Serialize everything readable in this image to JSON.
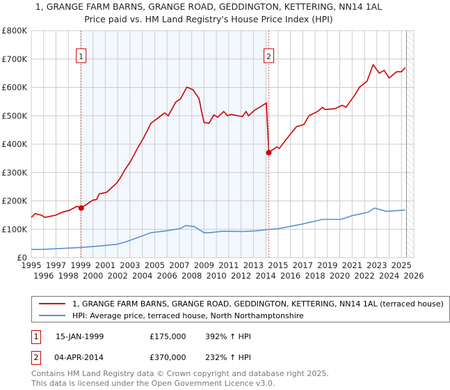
{
  "chart_data": {
    "type": "line",
    "title": "1, GRANGE FARM BARNS, GRANGE ROAD, GEDDINGTON, KETTERING, NN14 1AL",
    "subtitle": "Price paid vs. HM Land Registry's House Price Index (HPI)",
    "xlim": [
      1995,
      2026
    ],
    "ylim": [
      0,
      800000
    ],
    "x_ticks": [
      "1995",
      "1996",
      "1997",
      "1998",
      "1999",
      "2000",
      "2001",
      "2002",
      "2003",
      "2004",
      "2005",
      "2006",
      "2007",
      "2008",
      "2009",
      "2010",
      "2011",
      "2012",
      "2013",
      "2014",
      "2015",
      "2016",
      "2017",
      "2018",
      "2019",
      "2020",
      "2021",
      "2022",
      "2023",
      "2024",
      "2025",
      "2026"
    ],
    "y_ticks": [
      {
        "v": 0,
        "label": "£0"
      },
      {
        "v": 100000,
        "label": "£100K"
      },
      {
        "v": 200000,
        "label": "£200K"
      },
      {
        "v": 300000,
        "label": "£300K"
      },
      {
        "v": 400000,
        "label": "£400K"
      },
      {
        "v": 500000,
        "label": "£500K"
      },
      {
        "v": 600000,
        "label": "£600K"
      },
      {
        "v": 700000,
        "label": "£700K"
      },
      {
        "v": 800000,
        "label": "£800K"
      }
    ],
    "grid": true,
    "series": [
      {
        "name": "1, GRANGE FARM BARNS, GRANGE ROAD, GEDDINGTON, KETTERING, NN14 1AL (terraced house)",
        "color": "#cc0000",
        "points": [
          [
            1995,
            142
          ],
          [
            1995.3,
            155
          ],
          [
            1995.8,
            150
          ],
          [
            1996.1,
            142
          ],
          [
            1997,
            150
          ],
          [
            1997.5,
            160
          ],
          [
            1998.1,
            167
          ],
          [
            1998.7,
            181
          ],
          [
            1999.04,
            175
          ],
          [
            2000,
            203
          ],
          [
            2000.3,
            205
          ],
          [
            2000.5,
            225
          ],
          [
            2001.1,
            230
          ],
          [
            2001.9,
            262
          ],
          [
            2002.2,
            280
          ],
          [
            2002.6,
            311
          ],
          [
            2003,
            336
          ],
          [
            2003.6,
            385
          ],
          [
            2004.1,
            422
          ],
          [
            2004.7,
            474
          ],
          [
            2005.2,
            490
          ],
          [
            2005.8,
            510
          ],
          [
            2006.1,
            500
          ],
          [
            2006.7,
            548
          ],
          [
            2007.1,
            560
          ],
          [
            2007.6,
            601
          ],
          [
            2008.1,
            592
          ],
          [
            2008.6,
            560
          ],
          [
            2008.8,
            515
          ],
          [
            2009,
            476
          ],
          [
            2009.4,
            474
          ],
          [
            2009.8,
            503
          ],
          [
            2010.1,
            495
          ],
          [
            2010.6,
            515
          ],
          [
            2010.9,
            500
          ],
          [
            2011.2,
            505
          ],
          [
            2012.1,
            497
          ],
          [
            2012.4,
            515
          ],
          [
            2012.6,
            500
          ],
          [
            2013.1,
            520
          ],
          [
            2013.5,
            530
          ],
          [
            2014.05,
            545
          ],
          [
            2014.25,
            370
          ],
          [
            2014.55,
            380
          ],
          [
            2014.9,
            390
          ],
          [
            2015.1,
            385
          ],
          [
            2015.9,
            430
          ],
          [
            2016.5,
            462
          ],
          [
            2016.8,
            465
          ],
          [
            2017.1,
            470
          ],
          [
            2017.5,
            500
          ],
          [
            2018.2,
            515
          ],
          [
            2018.6,
            530
          ],
          [
            2018.8,
            522
          ],
          [
            2019.6,
            525
          ],
          [
            2020.2,
            537
          ],
          [
            2020.5,
            530
          ],
          [
            2020.8,
            548
          ],
          [
            2021.2,
            572
          ],
          [
            2021.6,
            601
          ],
          [
            2022.2,
            621
          ],
          [
            2022.7,
            680
          ],
          [
            2023.2,
            650
          ],
          [
            2023.6,
            660
          ],
          [
            2024,
            633
          ],
          [
            2024.6,
            655
          ],
          [
            2025,
            655
          ],
          [
            2025.3,
            670
          ]
        ]
      },
      {
        "name": "HPI: Average price, terraced house, North Northamptonshire",
        "color": "#5b8fd4",
        "points": [
          [
            1995,
            29
          ],
          [
            1995.8,
            29
          ],
          [
            1998.1,
            34
          ],
          [
            1999,
            36
          ],
          [
            2000.5,
            41
          ],
          [
            2001.9,
            47
          ],
          [
            2002.6,
            55
          ],
          [
            2003.7,
            72
          ],
          [
            2004.7,
            88
          ],
          [
            2006,
            95
          ],
          [
            2007.1,
            103
          ],
          [
            2007.5,
            113
          ],
          [
            2008.2,
            110
          ],
          [
            2009,
            88
          ],
          [
            2009.4,
            88
          ],
          [
            2010.5,
            93
          ],
          [
            2012.2,
            92
          ],
          [
            2013.3,
            95
          ],
          [
            2014.3,
            100
          ],
          [
            2015,
            102
          ],
          [
            2016.9,
            118
          ],
          [
            2018.6,
            135
          ],
          [
            2020.1,
            135
          ],
          [
            2021,
            148
          ],
          [
            2022.3,
            160
          ],
          [
            2022.8,
            175
          ],
          [
            2023.8,
            163
          ],
          [
            2025.3,
            168
          ]
        ]
      }
    ],
    "value_unit": "thousands GBP",
    "sales": [
      {
        "n": "1",
        "date": "15-JAN-1999",
        "x": 1999.04,
        "price": "£175,000",
        "value": 175,
        "hpi": "392% ↑ HPI"
      },
      {
        "n": "2",
        "date": "04-APR-2014",
        "x": 2014.25,
        "price": "£370,000",
        "value": 370,
        "hpi": "232% ↑ HPI"
      }
    ],
    "shaded_range": [
      1999.04,
      2014.25
    ],
    "forecast_from": 2025.4
  },
  "footer": {
    "line1": "Contains HM Land Registry data © Crown copyright and database right 2025.",
    "line2": "This data is licensed under the Open Government Licence v3.0."
  }
}
